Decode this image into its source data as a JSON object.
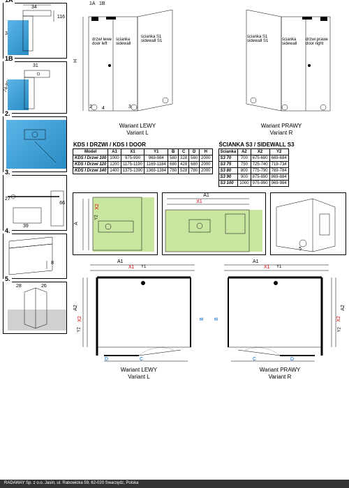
{
  "details": {
    "d1a": {
      "label": "1A",
      "dim_top": "34",
      "dim_right": "116",
      "dim_left": "30"
    },
    "d1b": {
      "label": "1B",
      "dim_top": "31",
      "dim_left": "74-89"
    },
    "d2": {
      "label": "2.",
      "dim_top": "26",
      "dim_diag": "32"
    },
    "d3": {
      "label": "3.",
      "dim_left": "27",
      "dim_bottom": "39",
      "dim_right": "66"
    },
    "d4": {
      "label": "4.",
      "dim_right": "8"
    },
    "d5": {
      "label": "5.",
      "dim_left": "28",
      "dim_right": "26"
    }
  },
  "iso": {
    "left": {
      "label_top_1": "1A",
      "label_top_2": "1B",
      "door_label": "drzwi lewe",
      "door_label_en": "door left",
      "side_label": "ścianka",
      "side_label_en": "sidewall",
      "side2_label": "ścianka S1",
      "side2_label_en": "sidewall S1",
      "marker_2": "2",
      "marker_3": "3",
      "marker_4": "4",
      "caption": "Wariant LEWY",
      "caption_en": "Variant L"
    },
    "right": {
      "side2_label": "ścianka S1",
      "side2_label_en": "sidewall S1",
      "side_label": "ścianka",
      "side_label_en": "sidewall",
      "door_label": "drzwi prawe",
      "door_label_en": "door right",
      "marker_2": "2",
      "marker_3": "3",
      "caption": "Wariant PRAWY",
      "caption_en": "Variant R"
    },
    "dim_H": "H"
  },
  "table_door": {
    "title": "KDS I DRZWI / KDS I DOOR",
    "headers": [
      "Model",
      "A1",
      "X1",
      "Y1",
      "B",
      "C",
      "D",
      "H"
    ],
    "rows": [
      [
        "KDS I Drzwi 100",
        "1000",
        "975-990",
        "969-984",
        "580",
        "328",
        "580",
        "2000"
      ],
      [
        "KDS I Drzwi 120",
        "1200",
        "1175-1190",
        "1169-1184",
        "680",
        "428",
        "680",
        "2000"
      ],
      [
        "KDS I Drzwi 140",
        "1400",
        "1375-1390",
        "1369-1384",
        "780",
        "528",
        "780",
        "2000"
      ]
    ]
  },
  "table_side": {
    "title": "ŚCIANKA S3 / SIDEWALL S3",
    "headers": [
      "Ścianka",
      "A2",
      "X2",
      "Y2"
    ],
    "rows": [
      [
        "S3 70",
        "700",
        "675-690",
        "669-684"
      ],
      [
        "S3 75",
        "750",
        "725-740",
        "719-734"
      ],
      [
        "S3 80",
        "800",
        "775-790",
        "769-784"
      ],
      [
        "S3 90",
        "900",
        "875-890",
        "869-884"
      ],
      [
        "S3 100",
        "1000",
        "975-990",
        "969-984"
      ]
    ]
  },
  "mid_details": {
    "panel1": {
      "dim_A": "A",
      "dim_X2": "X2",
      "dim_Y2": "Y2"
    },
    "panel2": {
      "dim_A1": "A1",
      "dim_X1": "X1"
    },
    "panel3": {
      "marker_5": "5"
    }
  },
  "plans": {
    "left": {
      "dim_A1": "A1",
      "dim_X1": "X1",
      "dim_Y1": "Y1",
      "dim_A2": "A2",
      "dim_X2": "X2",
      "dim_Y2": "Y2",
      "dim_B": "B",
      "dim_C": "C",
      "dim_D": "D",
      "caption": "Wariant LEWY",
      "caption_en": "Variant L"
    },
    "right": {
      "dim_A1": "A1",
      "dim_X1": "X1",
      "dim_Y1": "Y1",
      "dim_A2": "A2",
      "dim_X2": "X2",
      "dim_Y2": "Y2",
      "dim_B": "B",
      "dim_C": "C",
      "dim_D": "D",
      "caption": "Wariant PRAWY",
      "caption_en": "Variant R"
    }
  },
  "footer": "RADAWAY Sp. z o.o. Jasin, ul. Rabowicka 59, 62-020 Swarzędz, Polska",
  "colors": {
    "blue": "#5bb5e8",
    "blue_dark": "#2a8cc4",
    "green": "#c8e6a0",
    "gray": "#d0d0d0",
    "red": "#d00000",
    "black": "#000000"
  }
}
